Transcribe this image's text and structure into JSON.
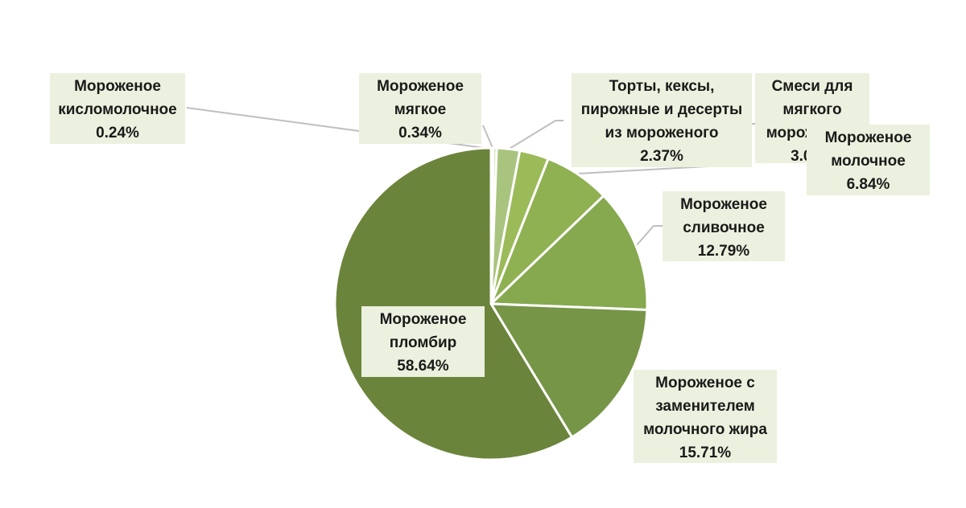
{
  "chart_data": {
    "type": "pie",
    "categories": [
      "Мороженое кисломолочное",
      "Мороженое мягкое",
      "Торты, кексы, пирожные и десерты из мороженого",
      "Смеси для мягкого мороженого",
      "Мороженое молочное",
      "Мороженое сливочное",
      "Мороженое с заменителем молочного жира",
      "Мороженое пломбир"
    ],
    "values": [
      0.24,
      0.34,
      2.37,
      3.02,
      6.84,
      12.79,
      15.71,
      58.64
    ],
    "unit": "%",
    "data_labels": [
      {
        "name": "Мороженое\nкисломолочное",
        "pct": "0.24%"
      },
      {
        "name": "Мороженое\nмягкое",
        "pct": "0.34%"
      },
      {
        "name": "Торты, кексы,\nпирожные и десерты\nиз мороженого",
        "pct": "2.37%"
      },
      {
        "name": "Смеси для\nмягкого\nмороженого",
        "pct": "3.02%"
      },
      {
        "name": "Мороженое\nмолочное",
        "pct": "6.84%"
      },
      {
        "name": "Мороженое\nсливочное",
        "pct": "12.79%"
      },
      {
        "name": "Мороженое с\nзаменителем\nмолочного жира",
        "pct": "15.71%"
      },
      {
        "name": "Мороженое\nпломбир",
        "pct": "58.64%"
      }
    ],
    "colors": [
      "#d7e4bd",
      "#c4d79b",
      "#a9c47f",
      "#9bbb59",
      "#8fb152",
      "#86a84f",
      "#779547",
      "#6b843b"
    ],
    "label_background": "#ebf1de",
    "title": "",
    "legend": "none"
  }
}
